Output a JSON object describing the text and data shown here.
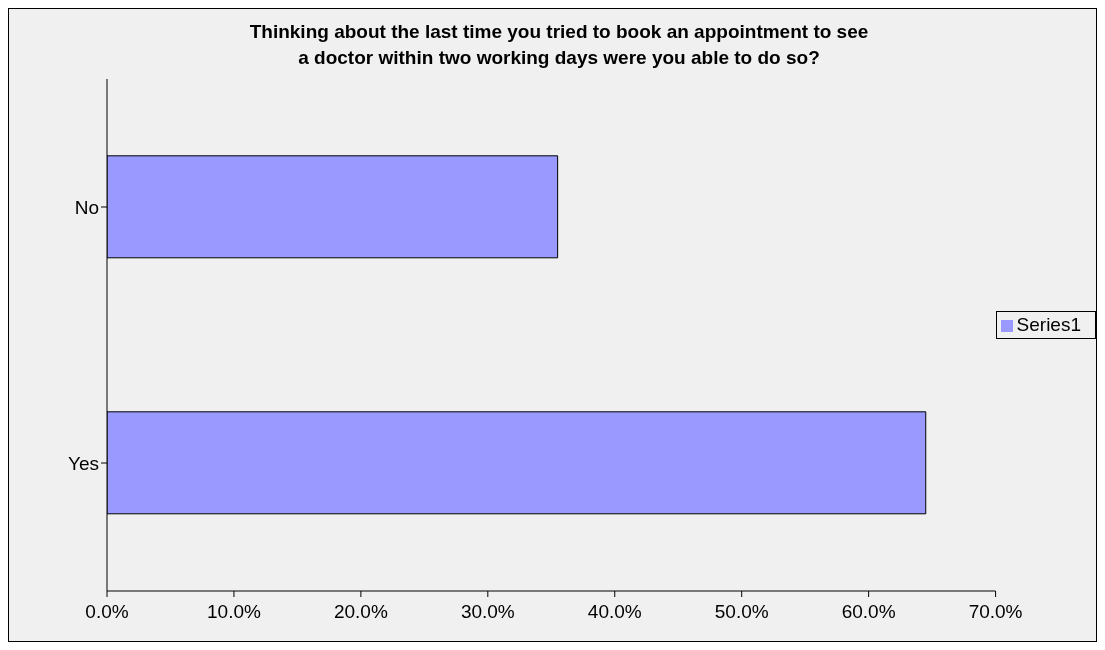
{
  "chart_data": {
    "type": "bar",
    "orientation": "horizontal",
    "title": "Thinking about the last time you tried to book an appointment to see a doctor within two working days were you able to do so?",
    "categories": [
      "No",
      "Yes"
    ],
    "series": [
      {
        "name": "Series1",
        "color": "#9999ff",
        "values": [
          35.5,
          64.5
        ]
      }
    ],
    "xlim": [
      0,
      70
    ],
    "xticks": [
      {
        "value": 0,
        "label": "0.0%"
      },
      {
        "value": 10,
        "label": "10.0%"
      },
      {
        "value": 20,
        "label": "20.0%"
      },
      {
        "value": 30,
        "label": "30.0%"
      },
      {
        "value": 40,
        "label": "40.0%"
      },
      {
        "value": 50,
        "label": "50.0%"
      },
      {
        "value": 60,
        "label": "60.0%"
      },
      {
        "value": 70,
        "label": "70.0%"
      }
    ],
    "grid": false,
    "legend": "right"
  }
}
